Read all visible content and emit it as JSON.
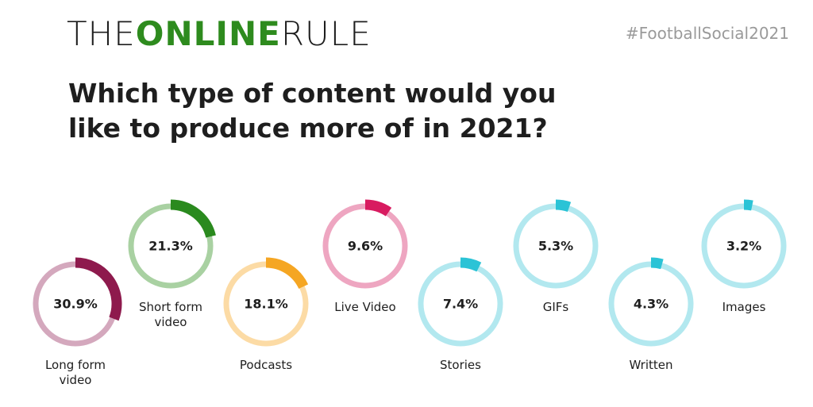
{
  "brand": [
    "THE",
    "ONLINE",
    "RULE"
  ],
  "hashtag": "#FootballSocial2021",
  "chart_data": {
    "type": "gauge",
    "title": "Which type of content would you like to produce more of in 2021?",
    "categories": [
      "Long form video",
      "Short form video",
      "Podcasts",
      "Live Video",
      "Stories",
      "GIFs",
      "Written",
      "Images"
    ],
    "values": [
      30.9,
      21.3,
      18.1,
      9.6,
      7.4,
      5.3,
      4.3,
      3.2
    ],
    "value_labels": [
      "30.9%",
      "21.3%",
      "18.1%",
      "9.6%",
      "7.4%",
      "5.3%",
      "4.3%",
      "3.2%"
    ],
    "colors": [
      "#8e1a4d",
      "#2a8a1e",
      "#f5a623",
      "#d81b60",
      "#2bc3d6",
      "#2bc3d6",
      "#2bc3d6",
      "#2bc3d6"
    ],
    "track_colors": [
      "#d4a8bd",
      "#a9d1a2",
      "#fcdba5",
      "#eea6c1",
      "#b2e8ef",
      "#b2e8ef",
      "#b2e8ef",
      "#b2e8ef"
    ],
    "ylim": [
      0,
      100
    ]
  }
}
